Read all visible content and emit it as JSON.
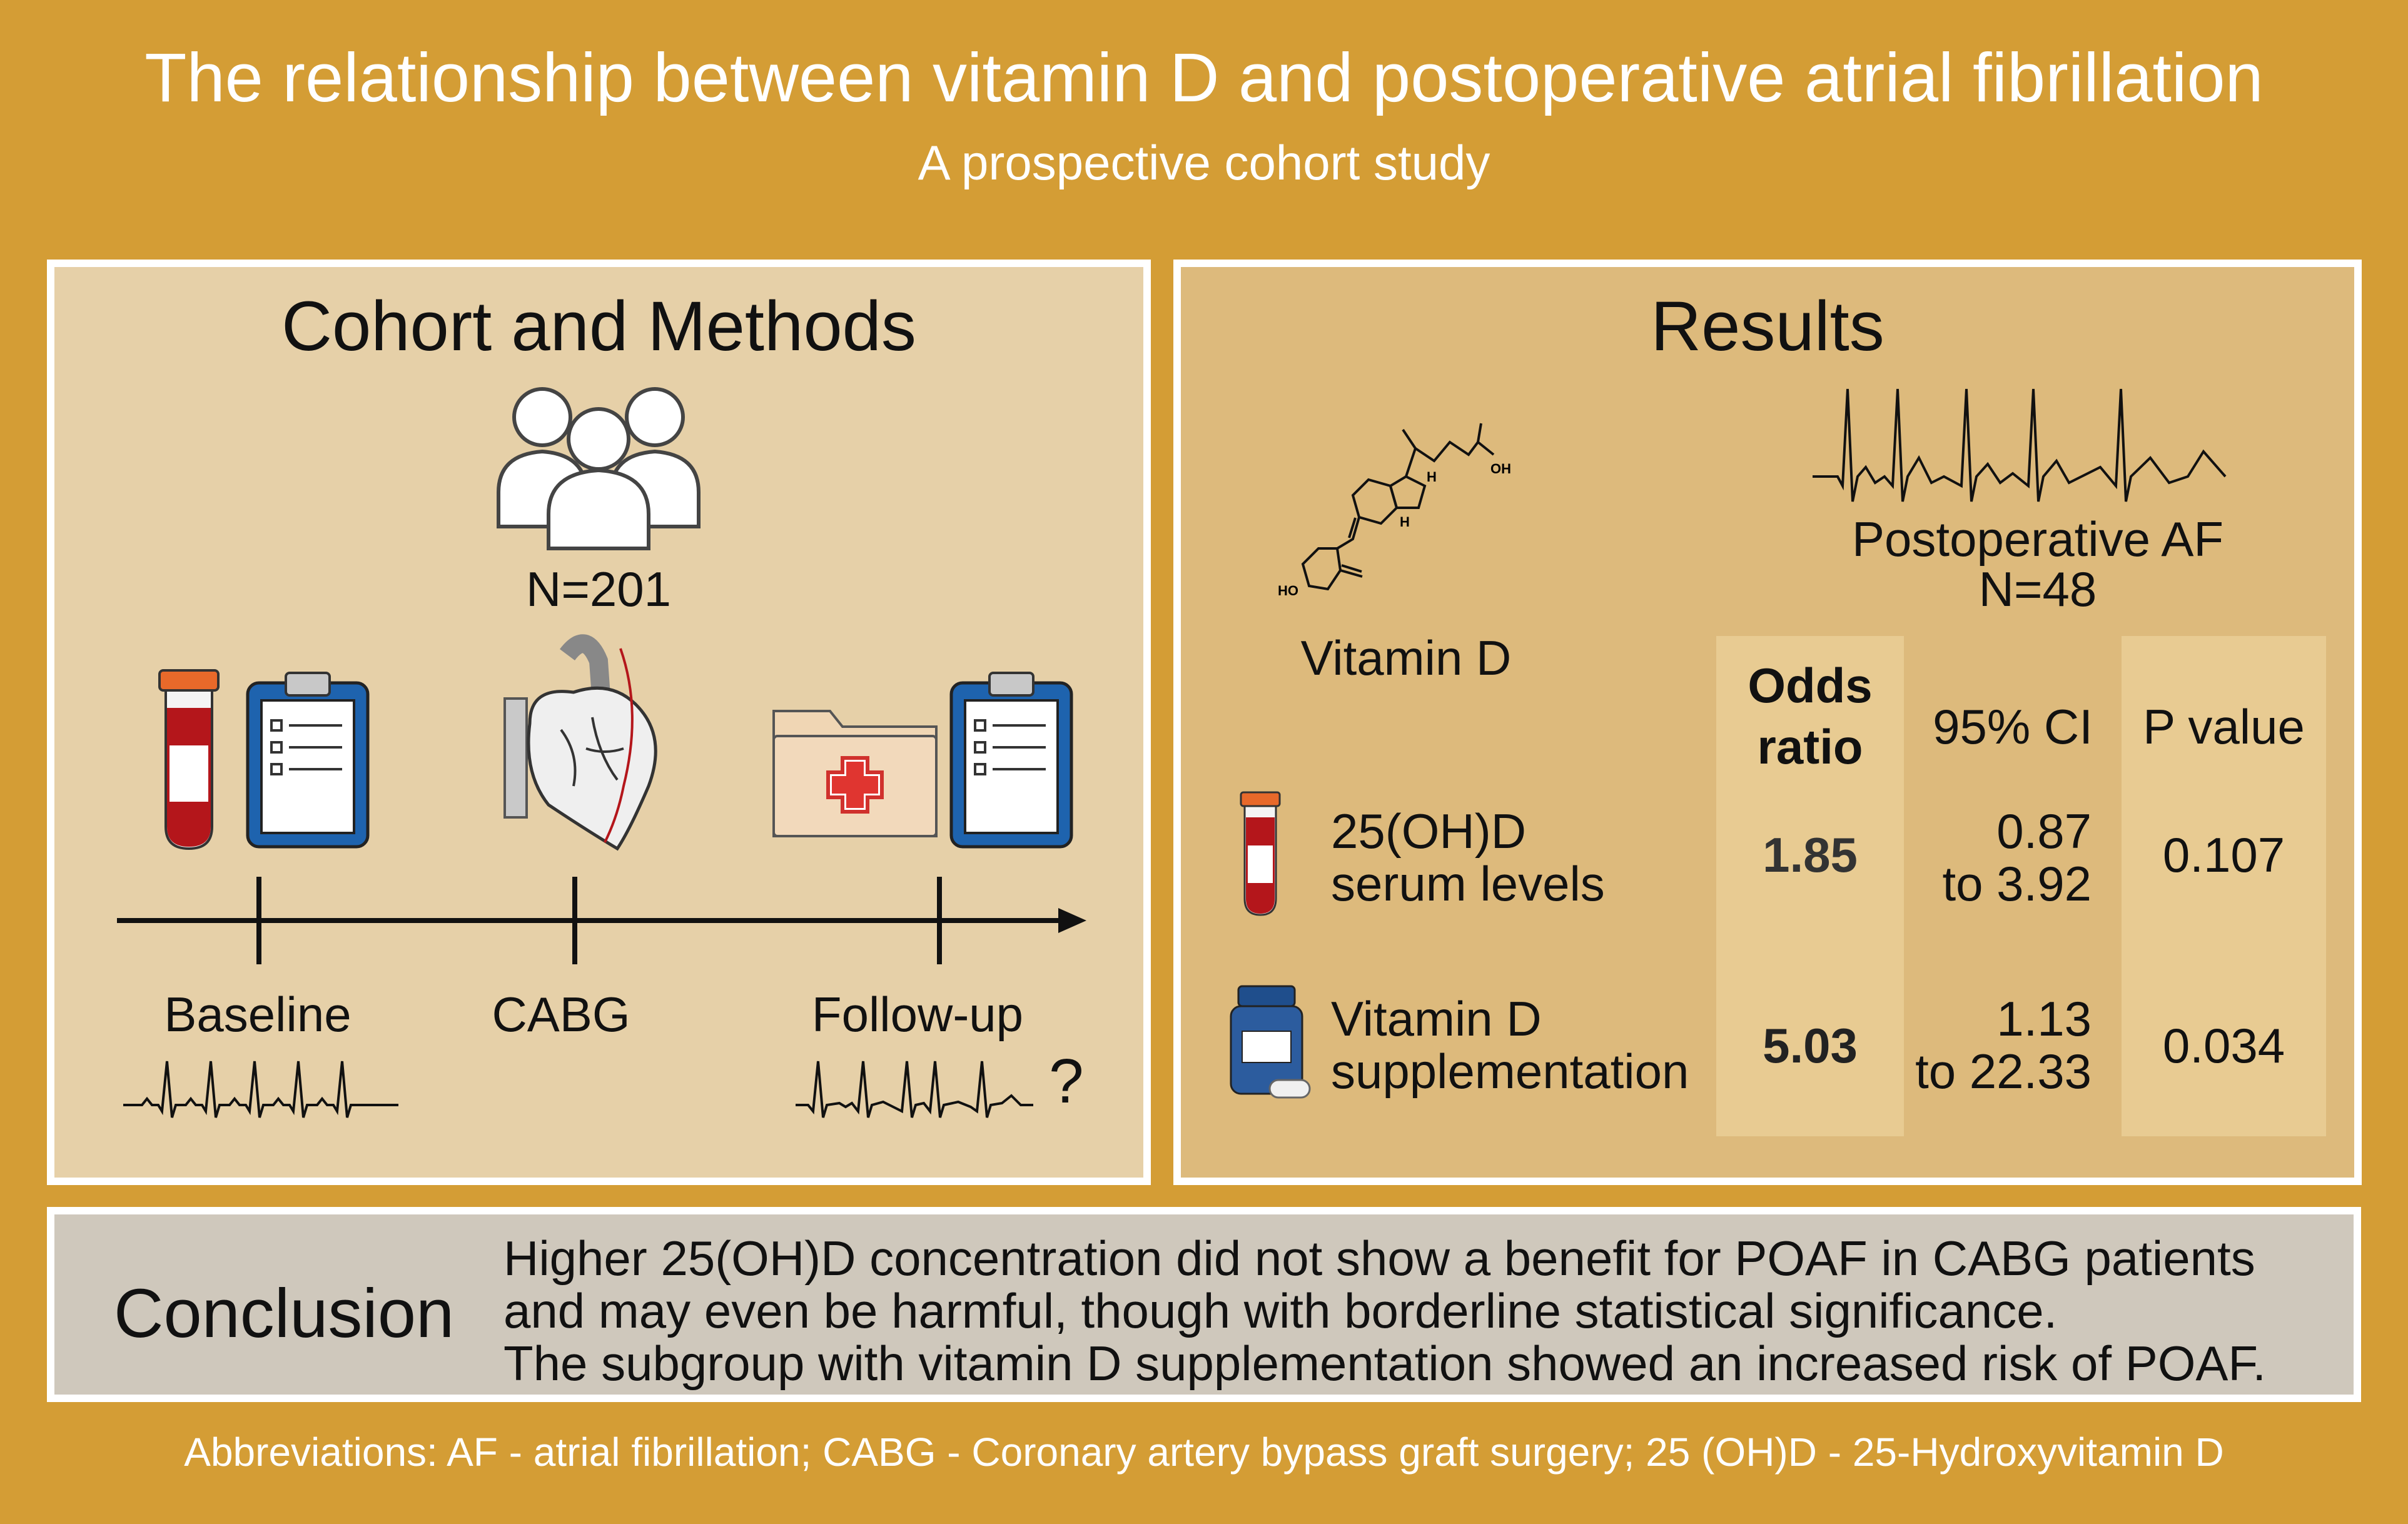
{
  "title": "The relationship between vitamin D and postoperative atrial fibrillation",
  "subtitle": "A prospective cohort study",
  "methods": {
    "heading": "Cohort and Methods",
    "n_label": "N=201",
    "timeline": {
      "baseline": "Baseline",
      "cabg": "CABG",
      "followup": "Follow-up",
      "question": "?"
    }
  },
  "results": {
    "heading": "Results",
    "vitd_label": "Vitamin D",
    "poaf_label": "Postoperative AF",
    "poaf_n": "N=48",
    "molecule": {
      "h1": "H",
      "h2": "H",
      "oh": "OH",
      "ho": "HO"
    },
    "table": {
      "col_or_line1": "Odds",
      "col_or_line2": "ratio",
      "col_ci": "95% CI",
      "col_p": "P value",
      "rows": [
        {
          "label1": "25(OH)D",
          "label2": "serum levels",
          "or": "1.85",
          "ci1": "0.87",
          "ci2": "to 3.92",
          "p": "0.107"
        },
        {
          "label1": "Vitamin D",
          "label2": "supplementation",
          "or": "5.03",
          "ci1": "1.13",
          "ci2": "to 22.33",
          "p": "0.034"
        }
      ]
    }
  },
  "conclusion": {
    "heading": "Conclusion",
    "lines": [
      "Higher 25(OH)D concentration did not show a benefit for POAF in CABG patients",
      "and may even be harmful, though with borderline statistical significance.",
      "The subgroup with vitamin D supplementation showed an increased risk of POAF."
    ]
  },
  "footer": "Abbreviations:  AF - atrial fibrillation; CABG - Coronary artery bypass graft surgery; 25 (OH)D - 25-Hydroxyvitamin D",
  "colors": {
    "background": "#D49D35",
    "panel_left": "#E6D0A8",
    "panel_right": "#DDBA7C",
    "panel_conclusion": "#CFC8BC",
    "clipboard_blue": "#1E63AE",
    "blood_red": "#B4161B",
    "cap_orange": "#E8692A",
    "bottle_blue": "#2C5C9E"
  },
  "icons": [
    "people-icon",
    "blood-tube-icon",
    "clipboard-icon",
    "heart-icon",
    "medical-folder-icon",
    "ecg-icon",
    "vitamin-d-molecule-icon",
    "pill-bottle-icon"
  ]
}
